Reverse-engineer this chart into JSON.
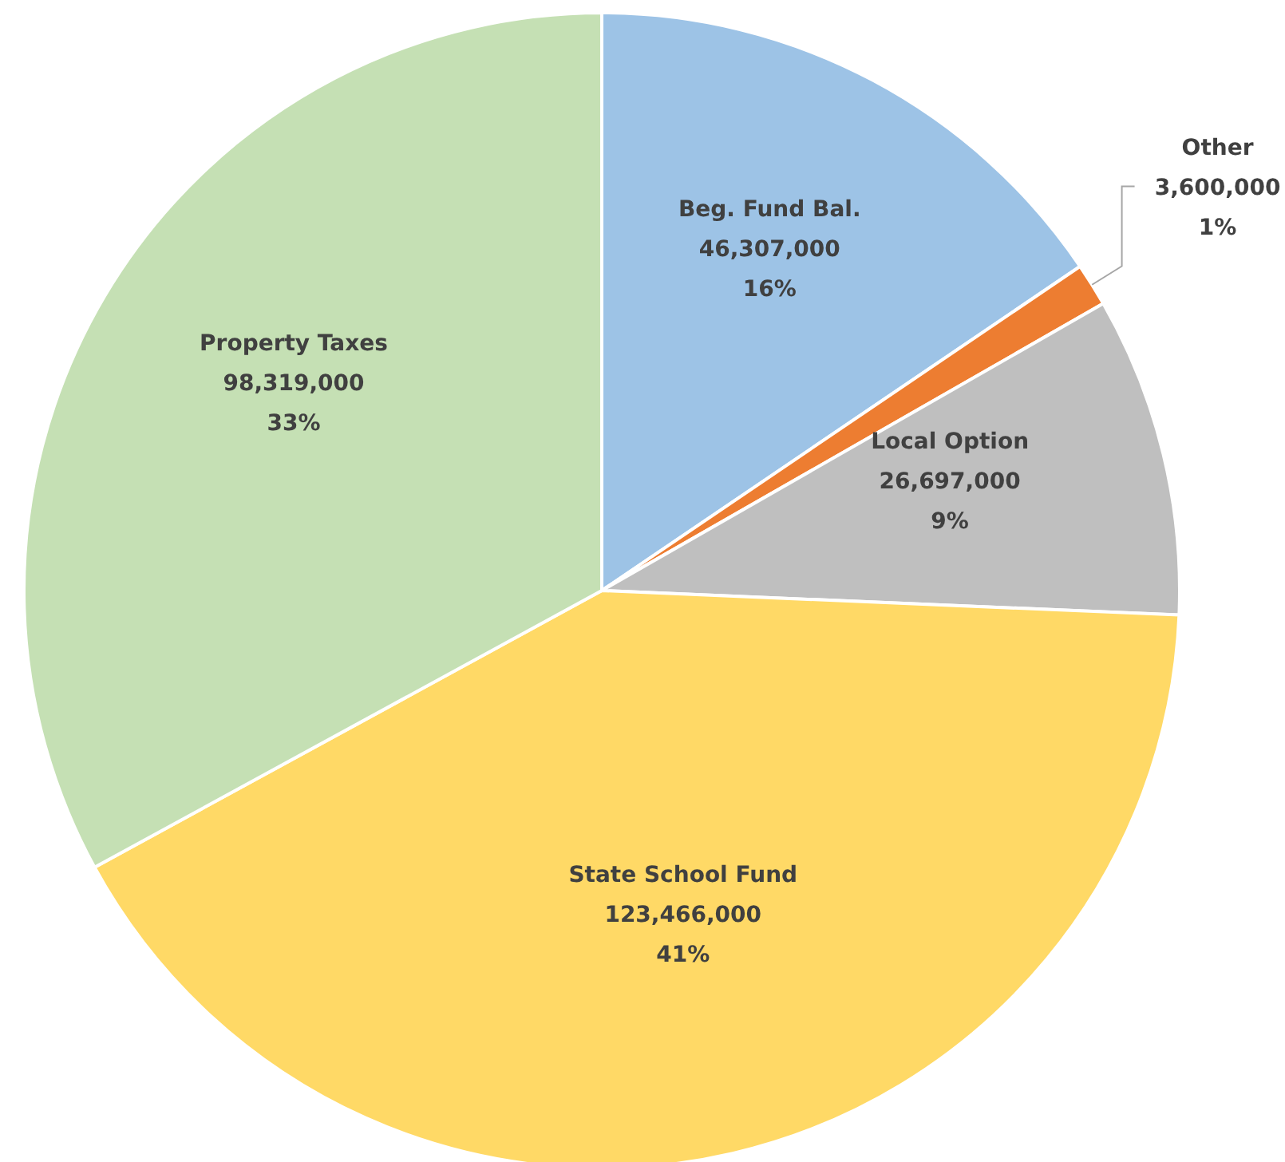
{
  "chart_data": {
    "type": "pie",
    "categories": [
      "Beg. Fund Bal.",
      "Other",
      "Local Option",
      "State School Fund",
      "Property Taxes"
    ],
    "values": [
      46307000,
      3600000,
      26697000,
      123466000,
      98319000
    ],
    "colors": [
      "#9dc3e6",
      "#ed7d31",
      "#bfbfbf",
      "#ffd966",
      "#c5e0b4"
    ],
    "value_labels": [
      "46,307,000\n16%",
      "3,600,000\n1%",
      "26,697,000\n9%",
      "123,466,000\n41%",
      "98,319,000\n33%"
    ]
  }
}
